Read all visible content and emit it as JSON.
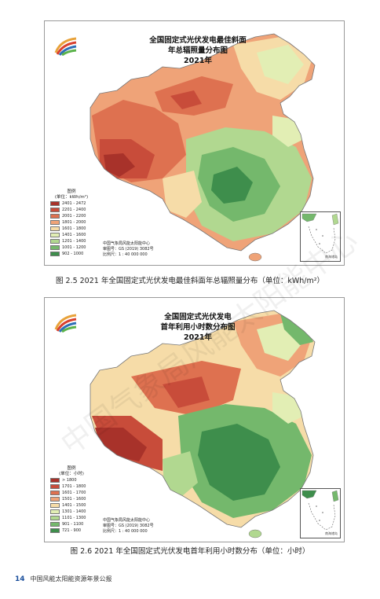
{
  "figures": [
    {
      "title_lines": [
        "全国固定式光伏发电最佳斜面",
        "年总辐照量分布图",
        "2021年"
      ],
      "legend_title": "图例",
      "legend_unit": "(单位：kWh/m²)",
      "legend_items": [
        {
          "label": "2401 - 2472",
          "color": "#a8322a"
        },
        {
          "label": "2201 - 2400",
          "color": "#c84c3a"
        },
        {
          "label": "2001 - 2200",
          "color": "#de7150"
        },
        {
          "label": "1801 - 2000",
          "color": "#efa378"
        },
        {
          "label": "1601 - 1800",
          "color": "#f6dca8"
        },
        {
          "label": "1401 - 1600",
          "color": "#e2eeb4"
        },
        {
          "label": "1201 - 1400",
          "color": "#b1d890"
        },
        {
          "label": "1001 - 1200",
          "color": "#74b86c"
        },
        {
          "label": "902 - 1000",
          "color": "#3e8e4c"
        }
      ],
      "credit_lines": [
        "中国气象局风能太阳能中心",
        "审图号：GS (2019) 3082号",
        "比例尺：1 : 40 000 000"
      ],
      "inset_label": "南海诸岛",
      "caption": "图 2.5   2021 年全国固定式光伏发电最佳斜面年总辐照量分布（单位：kWh/m²）"
    },
    {
      "title_lines": [
        "全国固定式光伏发电",
        "首年利用小时数分布图",
        "2021年"
      ],
      "legend_title": "图例",
      "legend_unit": "(单位：小时)",
      "legend_items": [
        {
          "label": "> 1800",
          "color": "#a8322a"
        },
        {
          "label": "1701 - 1800",
          "color": "#c84c3a"
        },
        {
          "label": "1601 - 1700",
          "color": "#de7150"
        },
        {
          "label": "1501 - 1600",
          "color": "#efa378"
        },
        {
          "label": "1401 - 1500",
          "color": "#f6dca8"
        },
        {
          "label": "1301 - 1400",
          "color": "#e2eeb4"
        },
        {
          "label": "1101 - 1300",
          "color": "#b1d890"
        },
        {
          "label": "901 - 1100",
          "color": "#74b86c"
        },
        {
          "label": "721 - 900",
          "color": "#3e8e4c"
        }
      ],
      "credit_lines": [
        "中国气象局风能太阳能中心",
        "审图号：GS (2019) 3082号",
        "比例尺：1 : 40 000 000"
      ],
      "inset_label": "南海诸岛",
      "caption": "图 2.6   2021 年全国固定式光伏发电首年利用小时数分布（单位：小时）"
    }
  ],
  "footer": {
    "page_number": "14",
    "publication": "中国风能太阳能资源年景公报"
  },
  "watermark": "中国气象局风能太阳能中心"
}
